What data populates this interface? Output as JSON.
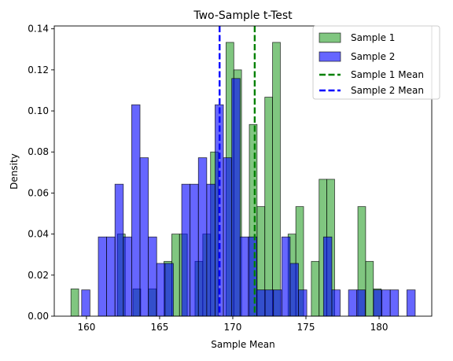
{
  "chart_data": {
    "type": "bar",
    "title": "Two-Sample t-Test",
    "xlabel": "Sample Mean",
    "ylabel": "Density",
    "xlim": [
      157.8,
      183.6
    ],
    "ylim": [
      0,
      0.1414
    ],
    "x_ticks": [
      160,
      165,
      170,
      175,
      180
    ],
    "y_ticks": [
      0.0,
      0.02,
      0.04,
      0.06,
      0.08,
      0.1,
      0.12,
      0.14
    ],
    "grid": false,
    "legend_position": "top-right",
    "series": [
      {
        "name": "Sample 1",
        "color": "#2ca02c",
        "bins": [
          [
            158.94,
            159.47,
            0.0133
          ],
          [
            159.47,
            160.0,
            0.0
          ],
          [
            160.0,
            160.53,
            0.0
          ],
          [
            160.53,
            161.06,
            0.0
          ],
          [
            161.06,
            161.59,
            0.0
          ],
          [
            161.59,
            162.12,
            0.0
          ],
          [
            162.12,
            162.65,
            0.04
          ],
          [
            162.65,
            163.18,
            0.0
          ],
          [
            163.18,
            163.71,
            0.0133
          ],
          [
            163.71,
            164.24,
            0.0
          ],
          [
            164.24,
            164.77,
            0.0133
          ],
          [
            164.77,
            165.3,
            0.0
          ],
          [
            165.3,
            165.83,
            0.0267
          ],
          [
            165.83,
            166.36,
            0.04
          ],
          [
            166.36,
            166.89,
            0.04
          ],
          [
            166.89,
            167.42,
            0.0
          ],
          [
            167.42,
            167.95,
            0.0267
          ],
          [
            167.95,
            168.48,
            0.04
          ],
          [
            168.48,
            169.01,
            0.08
          ],
          [
            169.01,
            169.54,
            0.0
          ],
          [
            169.54,
            170.07,
            0.1334
          ],
          [
            170.07,
            170.6,
            0.12
          ],
          [
            170.6,
            171.13,
            0.0
          ],
          [
            171.13,
            171.66,
            0.0934
          ],
          [
            171.66,
            172.19,
            0.0534
          ],
          [
            172.19,
            172.72,
            0.1067
          ],
          [
            172.72,
            173.25,
            0.1334
          ],
          [
            173.25,
            173.78,
            0.0
          ],
          [
            173.78,
            174.31,
            0.04
          ],
          [
            174.31,
            174.84,
            0.0534
          ],
          [
            174.84,
            175.37,
            0.0
          ],
          [
            175.37,
            175.9,
            0.0267
          ],
          [
            175.9,
            176.43,
            0.0667
          ],
          [
            176.43,
            176.96,
            0.0667
          ],
          [
            176.96,
            177.49,
            0.0
          ],
          [
            177.49,
            178.02,
            0.0
          ],
          [
            178.02,
            178.55,
            0.0
          ],
          [
            178.55,
            179.08,
            0.0534
          ],
          [
            179.08,
            179.61,
            0.0267
          ],
          [
            179.61,
            180.14,
            0.0133
          ]
        ]
      },
      {
        "name": "Sample 2",
        "color": "#0000ff",
        "bins": [
          [
            159.67,
            160.24,
            0.0128
          ],
          [
            160.24,
            160.81,
            0.0
          ],
          [
            160.81,
            161.38,
            0.0386
          ],
          [
            161.38,
            161.95,
            0.0386
          ],
          [
            161.95,
            162.52,
            0.0643
          ],
          [
            162.52,
            163.09,
            0.0386
          ],
          [
            163.09,
            163.66,
            0.103
          ],
          [
            163.66,
            164.23,
            0.0772
          ],
          [
            164.23,
            164.8,
            0.0386
          ],
          [
            164.8,
            165.37,
            0.0257
          ],
          [
            165.37,
            165.94,
            0.0257
          ],
          [
            165.94,
            166.51,
            0.0
          ],
          [
            166.51,
            167.08,
            0.0643
          ],
          [
            167.08,
            167.65,
            0.0643
          ],
          [
            167.65,
            168.22,
            0.0772
          ],
          [
            168.22,
            168.79,
            0.0643
          ],
          [
            168.79,
            169.36,
            0.103
          ],
          [
            169.36,
            169.93,
            0.0772
          ],
          [
            169.93,
            170.5,
            0.1158
          ],
          [
            170.5,
            171.07,
            0.0386
          ],
          [
            171.07,
            171.64,
            0.0386
          ],
          [
            171.64,
            172.21,
            0.0128
          ],
          [
            172.21,
            172.78,
            0.0128
          ],
          [
            172.78,
            173.35,
            0.0128
          ],
          [
            173.35,
            173.92,
            0.0386
          ],
          [
            173.92,
            174.49,
            0.0257
          ],
          [
            174.49,
            175.06,
            0.0128
          ],
          [
            175.06,
            175.63,
            0.0
          ],
          [
            175.63,
            176.2,
            0.0
          ],
          [
            176.2,
            176.77,
            0.0386
          ],
          [
            176.77,
            177.34,
            0.0128
          ],
          [
            177.34,
            177.91,
            0.0
          ],
          [
            177.91,
            178.48,
            0.0128
          ],
          [
            178.48,
            179.05,
            0.0128
          ],
          [
            179.05,
            179.62,
            0.0
          ],
          [
            179.62,
            180.19,
            0.0128
          ],
          [
            180.19,
            180.76,
            0.0128
          ],
          [
            180.76,
            181.33,
            0.0128
          ],
          [
            181.33,
            181.9,
            0.0
          ],
          [
            181.9,
            182.47,
            0.0128
          ]
        ]
      }
    ],
    "mean_lines": [
      {
        "name": "Sample 1 Mean",
        "x": 171.5,
        "color": "#008000"
      },
      {
        "name": "Sample 2 Mean",
        "x": 169.1,
        "color": "#0000ff"
      }
    ]
  }
}
